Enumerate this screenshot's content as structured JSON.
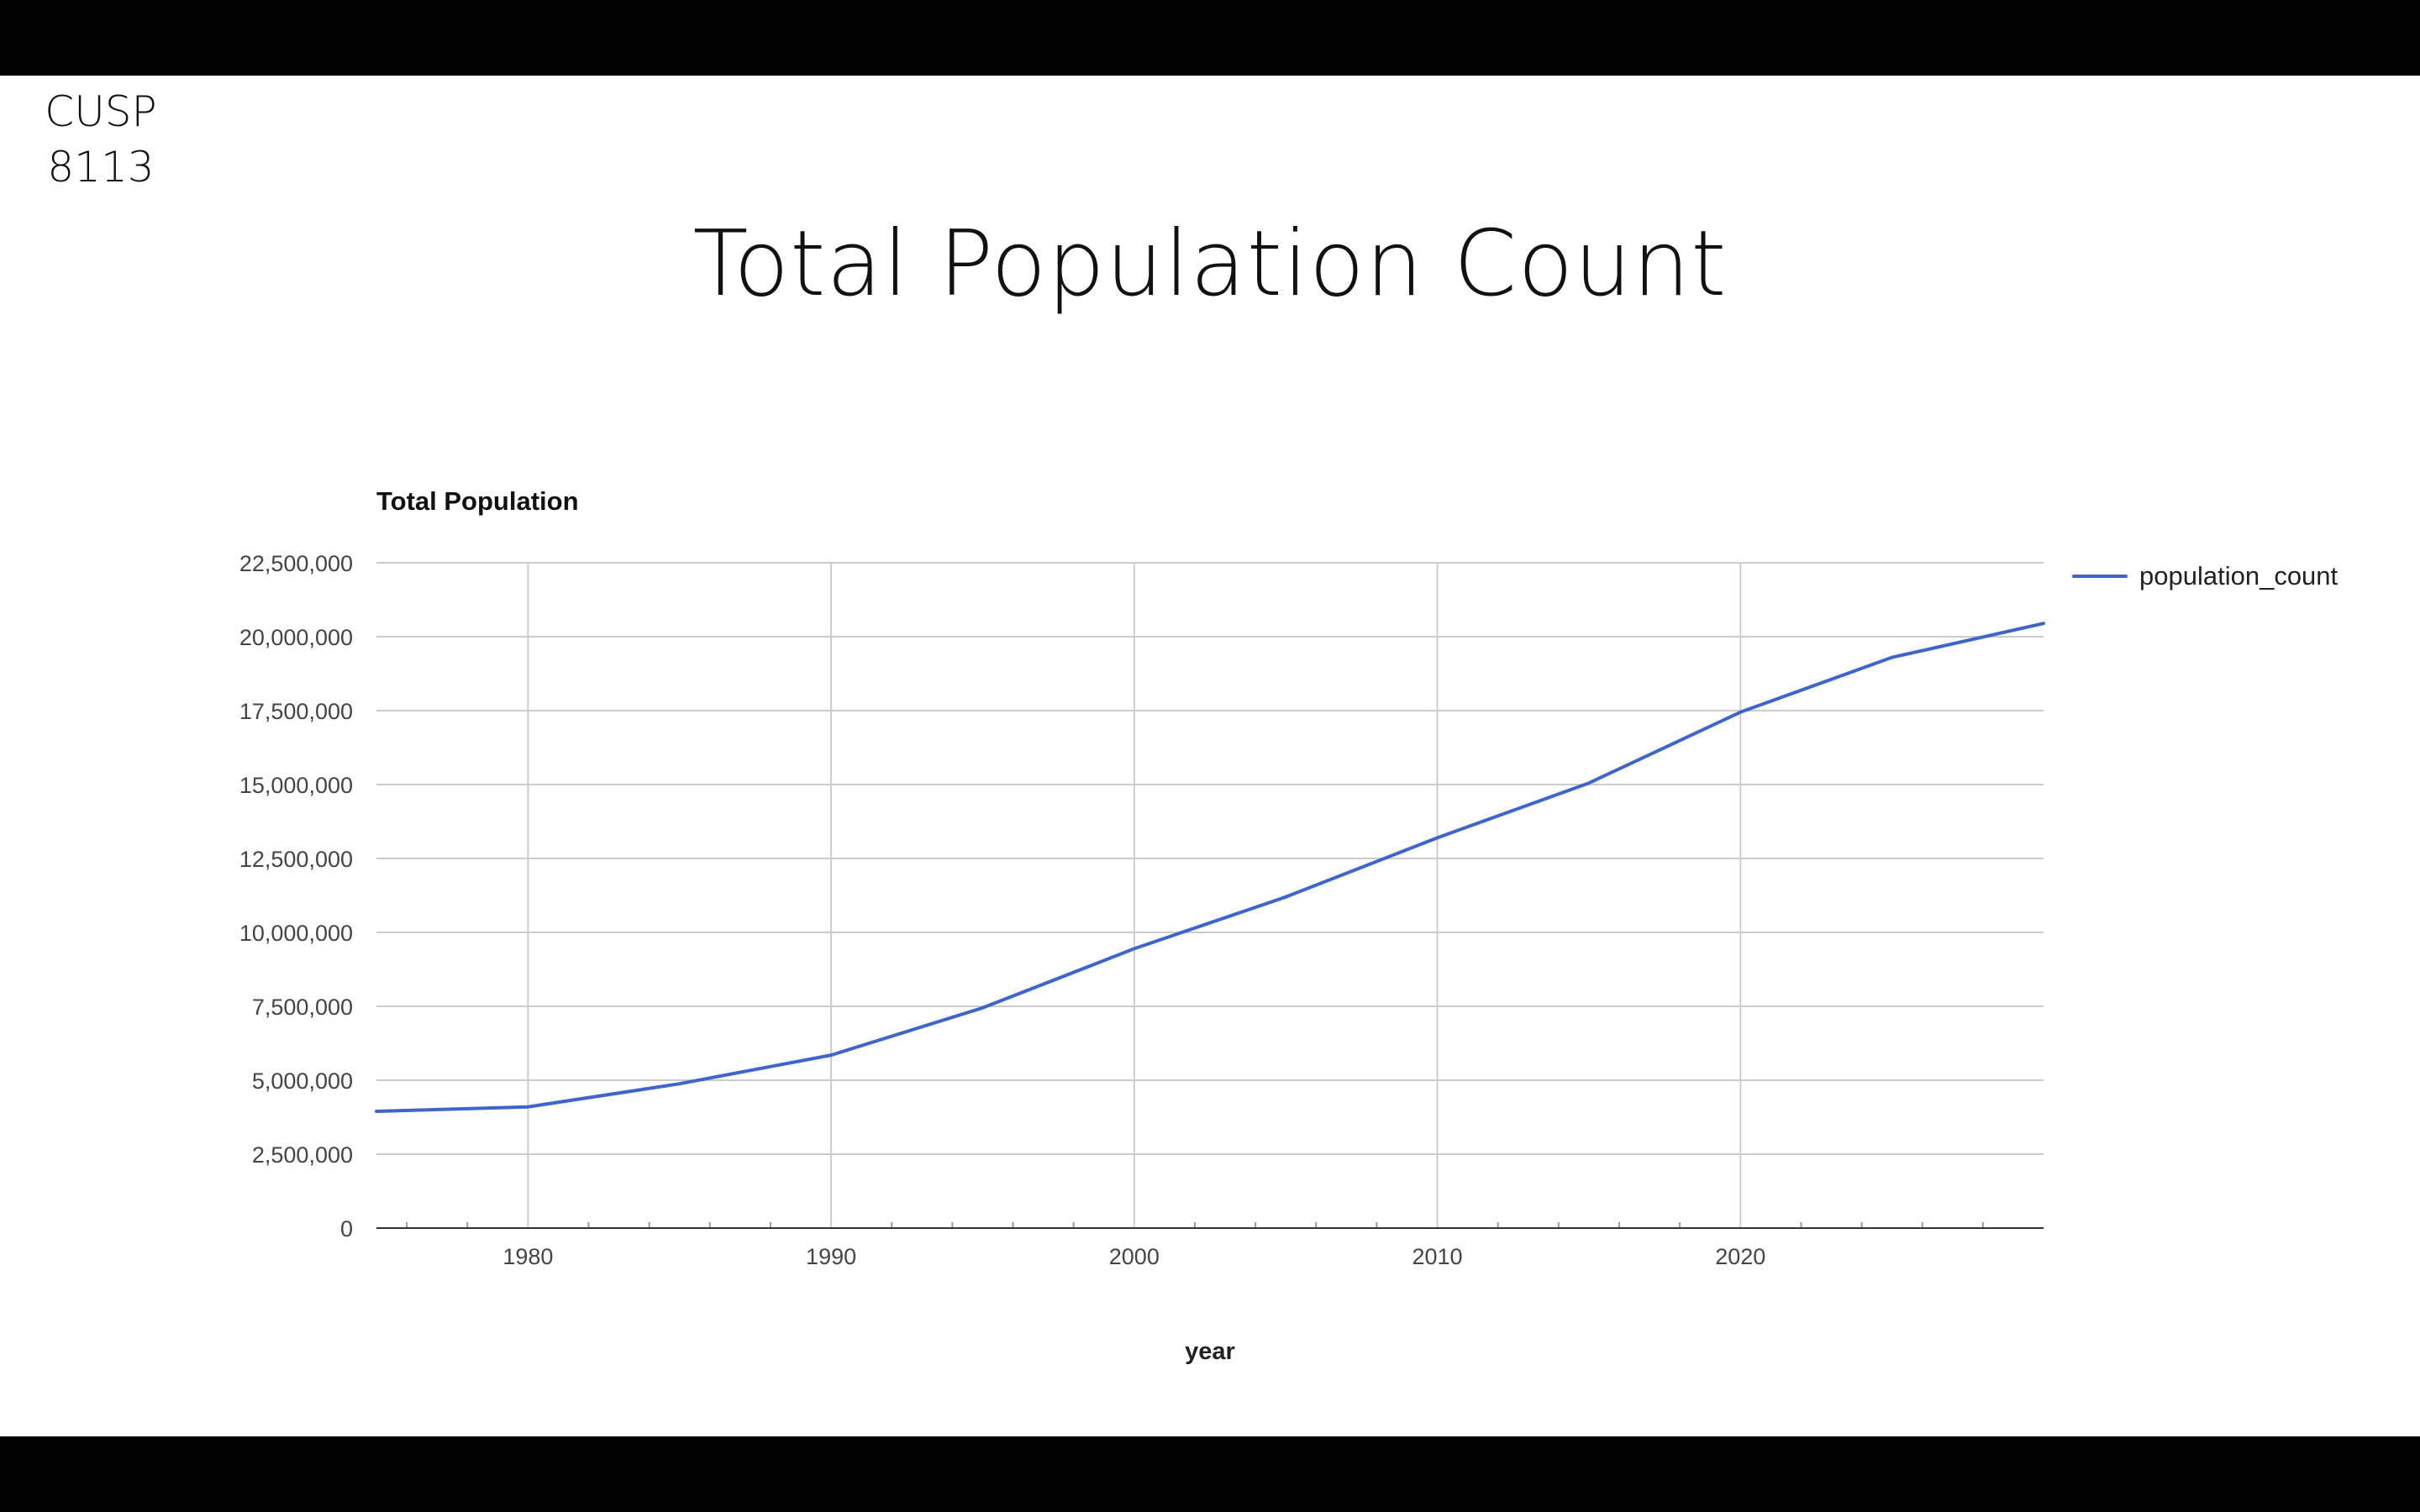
{
  "slide": {
    "course_code_line1": "CUSP",
    "course_code_line2": "8113",
    "title": "Total Population Count"
  },
  "chart_data": {
    "type": "line",
    "title": "Total Population",
    "xlabel": "year",
    "ylabel": "",
    "xlim": [
      1975,
      2030
    ],
    "ylim": [
      0,
      22500000
    ],
    "x_ticks": [
      1980,
      1990,
      2000,
      2010,
      2020
    ],
    "x_tick_labels": [
      "1980",
      "1990",
      "2000",
      "2010",
      "2020"
    ],
    "y_ticks": [
      0,
      2500000,
      5000000,
      7500000,
      10000000,
      12500000,
      15000000,
      17500000,
      20000000,
      22500000
    ],
    "y_tick_labels": [
      "0",
      "2,500,000",
      "5,000,000",
      "7,500,000",
      "10,000,000",
      "12,500,000",
      "15,000,000",
      "17,500,000",
      "20,000,000",
      "22,500,000"
    ],
    "grid": true,
    "legend_position": "top-right",
    "series": [
      {
        "name": "population_count",
        "color": "#3d65cc",
        "x": [
          1975,
          1980,
          1985,
          1990,
          1995,
          2000,
          2005,
          2010,
          2015,
          2020,
          2025,
          2030
        ],
        "values": [
          3950000,
          4100000,
          4880000,
          5850000,
          7450000,
          9450000,
          11200000,
          13200000,
          15050000,
          17450000,
          19300000,
          20450000
        ]
      }
    ]
  }
}
